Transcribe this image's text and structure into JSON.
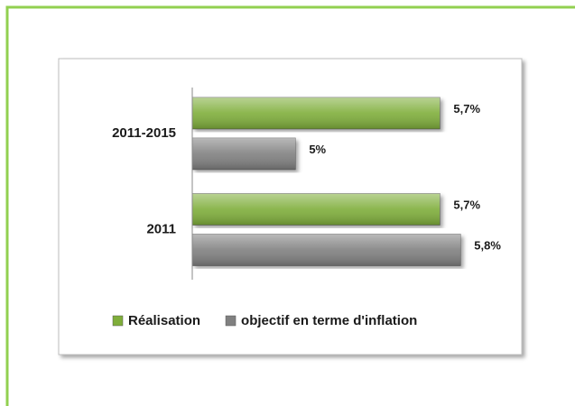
{
  "chart_data": {
    "type": "bar",
    "orientation": "horizontal",
    "categories": [
      "2011-2015",
      "2011"
    ],
    "series": [
      {
        "name": "Réalisation",
        "color": "#7fae3a",
        "values": [
          5.7,
          5.7
        ],
        "value_labels": [
          "5,7%",
          "5,7%"
        ]
      },
      {
        "name": "objectif en terme d'inflation",
        "color": "#808080",
        "values": [
          5,
          5.8
        ],
        "value_labels": [
          "5%",
          "5,8%"
        ]
      }
    ],
    "xlim": [
      4.5,
      6
    ],
    "legend": "bottom"
  }
}
